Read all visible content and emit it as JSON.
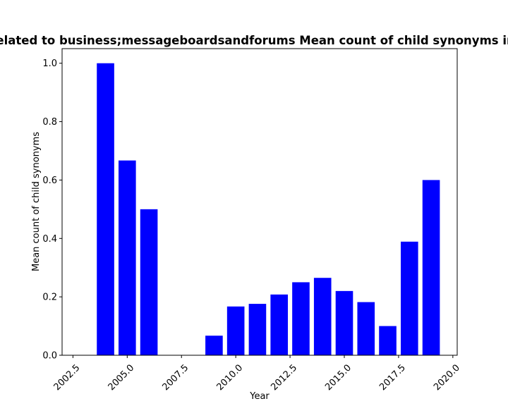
{
  "chart_data": {
    "type": "bar",
    "title": "related to business;messageboardsandforums Mean count of child synonyms in",
    "xlabel": "Year",
    "ylabel": "Mean count of child synonyms",
    "x": [
      2004,
      2005,
      2006,
      2009,
      2010,
      2011,
      2012,
      2013,
      2014,
      2015,
      2016,
      2017,
      2018,
      2019
    ],
    "values": [
      1.0,
      0.667,
      0.5,
      0.067,
      0.167,
      0.176,
      0.208,
      0.25,
      0.265,
      0.22,
      0.182,
      0.1,
      0.389,
      0.6
    ],
    "xlim": [
      2002.0,
      2020.2
    ],
    "ylim": [
      0.0,
      1.05
    ],
    "xticks": [
      "2002.5",
      "2005.0",
      "2007.5",
      "2010.0",
      "2012.5",
      "2015.0",
      "2017.5",
      "2020.0"
    ],
    "yticks": [
      "0.0",
      "0.2",
      "0.4",
      "0.6",
      "0.8",
      "1.0"
    ],
    "bar_color": "#0000ff",
    "grid": false,
    "legend": "none"
  }
}
